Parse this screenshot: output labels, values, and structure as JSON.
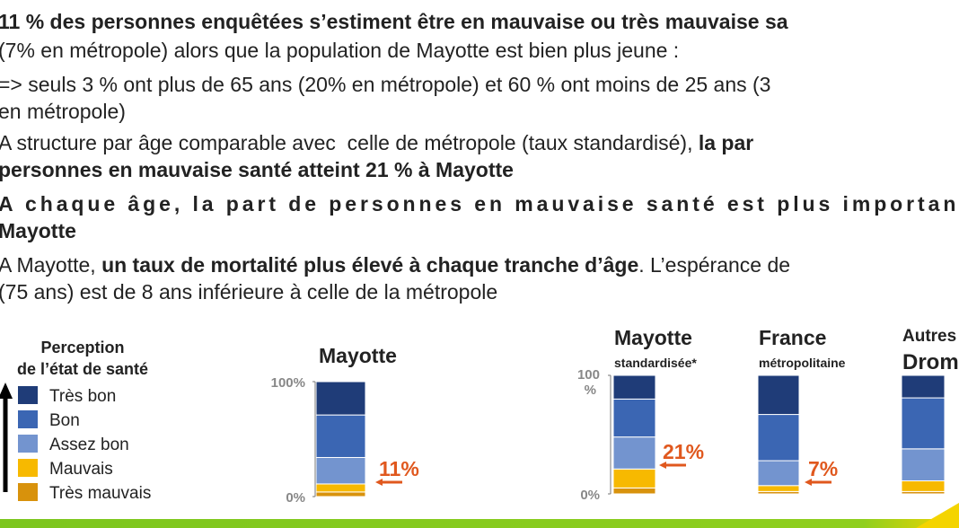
{
  "lines": [
    {
      "runs": [
        {
          "text": "11 % des personnes enquêtées s’estiment être en mauvaise ou très mauvaise sa",
          "bold": true
        }
      ]
    },
    {
      "runs": [
        {
          "text": "(7% en métropole) alors que la population de Mayotte est bien plus jeune :",
          "bold": false
        }
      ]
    },
    {
      "runs": [
        {
          "text": "=> seuls 3 % ont plus de 65 ans (20% en métropole) et 60 % ont moins de 25 ans (3",
          "bold": false
        }
      ]
    },
    {
      "runs": [
        {
          "text": "en métropole)",
          "bold": false
        }
      ]
    },
    {
      "runs": [
        {
          "text": "A structure par âge comparable avec  celle de métropole (taux standardisé), ",
          "bold": false
        },
        {
          "text": "la par",
          "bold": true
        }
      ]
    },
    {
      "runs": [
        {
          "text": "personnes en mauvaise santé atteint 21 % à Mayotte",
          "bold": true
        }
      ]
    },
    {
      "runs": [
        {
          "text": "A chaque âge, la part de personnes en mauvaise santé est plus important",
          "bold": true
        }
      ]
    },
    {
      "runs": [
        {
          "text": "Mayotte",
          "bold": true
        }
      ]
    },
    {
      "runs": [
        {
          "text": "A Mayotte, ",
          "bold": false
        },
        {
          "text": "un taux de mortalité plus élevé à chaque tranche d’âge",
          "bold": true
        },
        {
          "text": ". L’espérance de",
          "bold": false
        }
      ]
    },
    {
      "runs": [
        {
          "text": "(75 ans) est de 8 ans inférieure à celle de la métropole",
          "bold": false
        }
      ]
    }
  ],
  "legend": {
    "title": [
      "Perception",
      "de l’état de santé"
    ],
    "items": [
      {
        "name": "Très bon",
        "color": "#1f3c78"
      },
      {
        "name": "Bon",
        "color": "#3b66b3"
      },
      {
        "name": "Assez bon",
        "color": "#7394cf"
      },
      {
        "name": "Mauvais",
        "color": "#f7b900"
      },
      {
        "name": "Très mauvais",
        "color": "#d8920c"
      }
    ]
  },
  "chart_data": [
    {
      "type": "stacked_bar",
      "title": "Mayotte",
      "values": [
        29,
        37,
        23,
        7,
        4
      ],
      "ylim": [
        0,
        100
      ],
      "yticks": [
        {
          "value": 0,
          "label": "0%"
        },
        {
          "value": 100,
          "label": "100%"
        }
      ],
      "annotation": "11%"
    },
    {
      "type": "stacked_bar",
      "title": "Mayotte",
      "subtitle": "standardisée*",
      "values": [
        20,
        32,
        27,
        16,
        5
      ],
      "ylim": [
        0,
        100
      ],
      "yticks": [
        {
          "value": 0,
          "label": "0%"
        },
        {
          "value": 100,
          "label": "100 %"
        }
      ],
      "annotation": "21%"
    },
    {
      "type": "stacked_bar",
      "title": "France",
      "subtitle": "métropolitaine",
      "values": [
        33,
        39,
        21,
        5,
        2
      ],
      "ylim": [
        0,
        100
      ],
      "annotation": "7%"
    },
    {
      "type": "stacked_bar",
      "title": "Autres",
      "subtitle": "Drom",
      "values": [
        19,
        43,
        27,
        9,
        2
      ],
      "ylim": [
        0,
        100
      ]
    }
  ]
}
